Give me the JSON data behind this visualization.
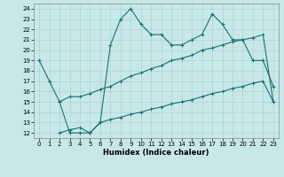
{
  "xlabel": "Humidex (Indice chaleur)",
  "bg_color": "#c8e8e8",
  "line_color": "#1a7070",
  "grid_color": "#aad4d4",
  "xlim": [
    -0.5,
    23.5
  ],
  "ylim": [
    11.5,
    24.5
  ],
  "xticks": [
    0,
    1,
    2,
    3,
    4,
    5,
    6,
    7,
    8,
    9,
    10,
    11,
    12,
    13,
    14,
    15,
    16,
    17,
    18,
    19,
    20,
    21,
    22,
    23
  ],
  "yticks": [
    12,
    13,
    14,
    15,
    16,
    17,
    18,
    19,
    20,
    21,
    22,
    23,
    24
  ],
  "line1_x": [
    0,
    1,
    2,
    3,
    4,
    5,
    6,
    7,
    8,
    9,
    10,
    11,
    12,
    13,
    14,
    15,
    16,
    17,
    18,
    19,
    20,
    21,
    22,
    23
  ],
  "line1_y": [
    19,
    17,
    15,
    12,
    12,
    12,
    13,
    20.5,
    23,
    24,
    22.5,
    21.5,
    21.5,
    20.5,
    20.5,
    21,
    21.5,
    23.5,
    22.5,
    21,
    21,
    19,
    19,
    16.5
  ],
  "line2_x": [
    2,
    3,
    4,
    5,
    6,
    7,
    8,
    9,
    10,
    11,
    12,
    13,
    14,
    15,
    16,
    17,
    18,
    19,
    20,
    21,
    22,
    23
  ],
  "line2_y": [
    15,
    15.5,
    15.5,
    15.8,
    16.2,
    16.5,
    17.0,
    17.5,
    17.8,
    18.2,
    18.5,
    19.0,
    19.2,
    19.5,
    20.0,
    20.2,
    20.5,
    20.8,
    21.0,
    21.2,
    21.5,
    15
  ],
  "line3_x": [
    2,
    3,
    4,
    5,
    6,
    7,
    8,
    9,
    10,
    11,
    12,
    13,
    14,
    15,
    16,
    17,
    18,
    19,
    20,
    21,
    22,
    23
  ],
  "line3_y": [
    12.0,
    12.3,
    12.5,
    12.0,
    13.0,
    13.3,
    13.5,
    13.8,
    14.0,
    14.3,
    14.5,
    14.8,
    15.0,
    15.2,
    15.5,
    15.8,
    16.0,
    16.3,
    16.5,
    16.8,
    17.0,
    15
  ],
  "tick_fontsize": 5,
  "xlabel_fontsize": 6
}
